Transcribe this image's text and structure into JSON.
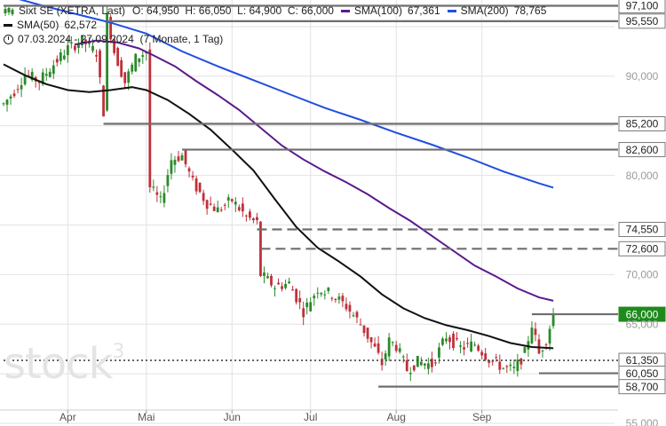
{
  "legend": {
    "instrument": "Sixt SE (XETRA, Last)",
    "open_label": "O:",
    "open": "64,950",
    "high_label": "H:",
    "high": "66,050",
    "low_label": "L:",
    "low": "64,900",
    "close_label": "C:",
    "close": "66,000",
    "sma100_label": "SMA(100)",
    "sma100": "67,361",
    "sma200_label": "SMA(200)",
    "sma200": "78,765",
    "sma50_label": "SMA(50)",
    "sma50": "62,572",
    "period": "07.03.2024 - 27.09.2024",
    "period_detail": "(7 Monate, 1 Tag)"
  },
  "watermark": {
    "text": "stock",
    "sup": "3"
  },
  "colors": {
    "sma50": "#111111",
    "sma100": "#5b1a8c",
    "sma200": "#1f4fe0",
    "up": "#2a8a2a",
    "down": "#c0303a",
    "level": "#6e6e6e",
    "last_price_badge": "#1e8a1e",
    "grid": "#e2e2e2"
  },
  "chart_data": {
    "type": "candlestick",
    "y_axis": {
      "min": 55,
      "max": 97.5,
      "position": "right",
      "ticks": [
        55,
        60,
        65,
        70,
        75,
        80,
        85,
        90,
        95
      ],
      "tick_labels": [
        "55,000",
        "60,000",
        "65,000",
        "70,000",
        "75,000",
        "80,000",
        "85,000",
        "90,000",
        "95,000"
      ]
    },
    "x_axis": {
      "ticks": [
        {
          "index": 18,
          "label": "Apr"
        },
        {
          "index": 40,
          "label": "Mai"
        },
        {
          "index": 64,
          "label": "Jun"
        },
        {
          "index": 86,
          "label": "Jul"
        },
        {
          "index": 110,
          "label": "Aug"
        },
        {
          "index": 134,
          "label": "Sep"
        }
      ],
      "count": 156
    },
    "grid": true,
    "levels": [
      {
        "value": 97.1,
        "label": "97,100",
        "style": "solid",
        "from_index": 0,
        "badge": "gray"
      },
      {
        "value": 95.55,
        "label": "95,550",
        "style": "solid",
        "from_index": 29,
        "badge": "gray"
      },
      {
        "value": 85.2,
        "label": "85,200",
        "style": "solid",
        "from_index": 28,
        "badge": "gray"
      },
      {
        "value": 82.6,
        "label": "82,600",
        "style": "solid",
        "from_index": 50,
        "badge": "gray"
      },
      {
        "value": 74.55,
        "label": "74,550",
        "style": "dashed",
        "from_index": 71,
        "badge": "gray"
      },
      {
        "value": 72.6,
        "label": "72,600",
        "style": "dashed",
        "from_index": 72,
        "badge": "gray"
      },
      {
        "value": 66.0,
        "label": "66,000",
        "style": "solid",
        "from_index": 148,
        "badge": "green"
      },
      {
        "value": 61.35,
        "label": "61,350",
        "style": "dotted",
        "from_index": 0,
        "badge": "gray"
      },
      {
        "value": 60.05,
        "label": "60,050",
        "style": "solid",
        "from_index": 150,
        "badge": "gray"
      },
      {
        "value": 58.7,
        "label": "58,700",
        "style": "solid",
        "from_index": 105,
        "badge": "gray"
      }
    ],
    "series": [
      {
        "name": "SMA(50)",
        "color": "#111111",
        "points": [
          [
            0,
            91.2
          ],
          [
            6,
            90.1
          ],
          [
            12,
            89.2
          ],
          [
            18,
            88.6
          ],
          [
            24,
            88.4
          ],
          [
            30,
            88.6
          ],
          [
            36,
            88.9
          ],
          [
            40,
            88.6
          ],
          [
            46,
            87.6
          ],
          [
            52,
            86.2
          ],
          [
            58,
            84.6
          ],
          [
            64,
            82.6
          ],
          [
            70,
            80.5
          ],
          [
            76,
            77.6
          ],
          [
            82,
            74.8
          ],
          [
            88,
            72.7
          ],
          [
            94,
            71.3
          ],
          [
            100,
            69.8
          ],
          [
            106,
            68.0
          ],
          [
            112,
            66.6
          ],
          [
            118,
            65.6
          ],
          [
            124,
            64.9
          ],
          [
            130,
            64.4
          ],
          [
            136,
            63.8
          ],
          [
            142,
            63.1
          ],
          [
            148,
            62.7
          ],
          [
            154,
            62.57
          ]
        ]
      },
      {
        "name": "SMA(100)",
        "color": "#5b1a8c",
        "points": [
          [
            20,
            93.2
          ],
          [
            26,
            93.6
          ],
          [
            32,
            93.4
          ],
          [
            38,
            92.8
          ],
          [
            42,
            92.1
          ],
          [
            48,
            91.0
          ],
          [
            54,
            89.5
          ],
          [
            60,
            88.1
          ],
          [
            66,
            86.6
          ],
          [
            72,
            84.8
          ],
          [
            78,
            83.0
          ],
          [
            84,
            81.6
          ],
          [
            90,
            80.4
          ],
          [
            96,
            79.3
          ],
          [
            102,
            78.1
          ],
          [
            108,
            76.7
          ],
          [
            114,
            75.4
          ],
          [
            120,
            73.9
          ],
          [
            126,
            72.4
          ],
          [
            132,
            70.9
          ],
          [
            138,
            69.8
          ],
          [
            144,
            68.6
          ],
          [
            150,
            67.7
          ],
          [
            154,
            67.36
          ]
        ]
      },
      {
        "name": "SMA(200)",
        "color": "#1f4fe0",
        "points": [
          [
            0,
            98.2
          ],
          [
            10,
            97.2
          ],
          [
            20,
            96.3
          ],
          [
            30,
            95.4
          ],
          [
            40,
            94.3
          ],
          [
            50,
            92.5
          ],
          [
            60,
            91.0
          ],
          [
            70,
            89.6
          ],
          [
            80,
            88.2
          ],
          [
            90,
            86.8
          ],
          [
            100,
            85.6
          ],
          [
            110,
            84.3
          ],
          [
            120,
            83.1
          ],
          [
            130,
            81.8
          ],
          [
            140,
            80.4
          ],
          [
            150,
            79.2
          ],
          [
            154,
            78.77
          ]
        ]
      }
    ]
  }
}
